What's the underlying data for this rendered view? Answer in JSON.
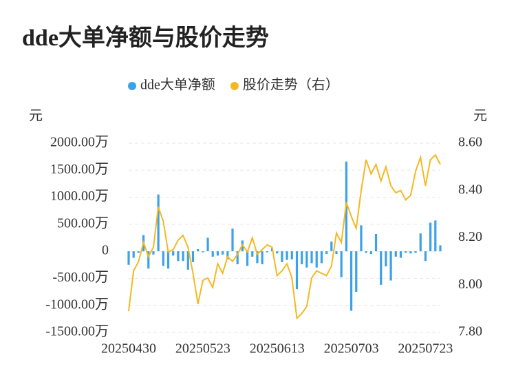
{
  "chart_data": {
    "type": "bar_line",
    "title": "dde大单净额与股价走势",
    "y_label": "元",
    "y2_label": "元",
    "categories": [
      "20250430",
      null,
      null,
      null,
      null,
      null,
      null,
      null,
      null,
      null,
      null,
      null,
      null,
      null,
      null,
      "20250523",
      null,
      null,
      null,
      null,
      null,
      null,
      null,
      null,
      null,
      null,
      null,
      null,
      null,
      null,
      "20250613",
      null,
      null,
      null,
      null,
      null,
      null,
      null,
      null,
      null,
      null,
      null,
      null,
      null,
      null,
      "20250703",
      null,
      null,
      null,
      null,
      null,
      null,
      null,
      null,
      null,
      null,
      null,
      null,
      null,
      null,
      "20250723",
      null,
      null,
      null
    ],
    "series": [
      {
        "name": "dde大单净额",
        "color": "#3ba1e8",
        "values": [
          -250,
          -120,
          -30,
          300,
          -320,
          -60,
          1050,
          -270,
          -320,
          -80,
          -180,
          -180,
          -340,
          -200,
          40,
          -20,
          250,
          -100,
          -80,
          -60,
          -150,
          420,
          -240,
          200,
          -270,
          -100,
          -220,
          -240,
          -20,
          60,
          -40,
          -200,
          -160,
          -150,
          -700,
          -240,
          -300,
          -220,
          -300,
          -220,
          -50,
          180,
          -50,
          -480,
          1660,
          -1100,
          -750,
          480,
          -30,
          -50,
          320,
          -620,
          -280,
          -540,
          -100,
          -120,
          -30,
          -40,
          -30,
          330,
          -180,
          530,
          570,
          110
        ]
      },
      {
        "name": "股价走势（右）",
        "color": "#f5b820",
        "axis": "y2",
        "values": [
          7.89,
          8.06,
          8.1,
          8.18,
          8.12,
          8.16,
          8.33,
          8.27,
          8.14,
          8.15,
          8.19,
          8.21,
          8.16,
          8.05,
          7.92,
          8.02,
          8.03,
          7.99,
          8.09,
          8.05,
          8.12,
          8.1,
          8.13,
          8.17,
          8.14,
          8.2,
          8.13,
          8.15,
          8.17,
          8.16,
          8.04,
          8.06,
          8.09,
          8.03,
          7.86,
          7.88,
          7.91,
          8.03,
          8.06,
          8.05,
          8.04,
          8.08,
          8.22,
          8.18,
          8.35,
          8.29,
          8.24,
          8.4,
          8.53,
          8.47,
          8.51,
          8.44,
          8.5,
          8.42,
          8.39,
          8.4,
          8.36,
          8.38,
          8.48,
          8.54,
          8.42,
          8.53,
          8.55,
          8.51
        ]
      }
    ],
    "ylim": [
      -1500,
      2000
    ],
    "yticks": [
      {
        "value": -1500,
        "label": "-1500.00万"
      },
      {
        "value": -1000,
        "label": "-1000.00万"
      },
      {
        "value": -500,
        "label": "-500.00万"
      },
      0,
      {
        "value": 500,
        "label": "500.00万"
      },
      {
        "value": 1000,
        "label": "1000.00万"
      },
      {
        "value": 1500,
        "label": "1500.00万"
      },
      {
        "value": 2000,
        "label": "2000.00万"
      }
    ],
    "y2lim": [
      7.8,
      8.6
    ],
    "y2ticks": [
      {
        "value": 7.8,
        "label": "7.80"
      },
      {
        "value": 8.0,
        "label": "8.00"
      },
      {
        "value": 8.2,
        "label": "8.20"
      },
      {
        "value": 8.4,
        "label": "8.40"
      },
      {
        "value": 8.6,
        "label": "8.60"
      }
    ],
    "grid": true,
    "legend": "top"
  }
}
